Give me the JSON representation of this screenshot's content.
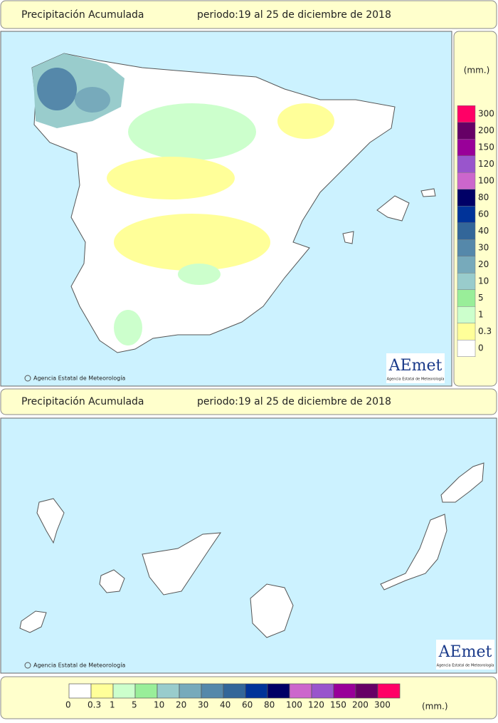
{
  "headers": [
    {
      "title": "Precipitación Acumulada",
      "period": "periodo:19 al 25 de diciembre de 2018"
    },
    {
      "title": "Precipitación Acumulada",
      "period": "periodo:19 al 25 de diciembre de 2018"
    }
  ],
  "maps": [
    {
      "credit": "Agencia Estatal de Meteorología",
      "logo": "AEmet",
      "logo_subtitle": "Agencia Estatal de Meteorología"
    },
    {
      "credit": "Agencia Estatal de Meteorología",
      "logo": "AEmet",
      "logo_subtitle": "Agencia Estatal de Meteorología"
    }
  ],
  "legend": {
    "unit": "(mm.)",
    "classes": [
      {
        "label": "0",
        "color": "#ffffff"
      },
      {
        "label": "0.3",
        "color": "#ffff99"
      },
      {
        "label": "1",
        "color": "#ccffcc"
      },
      {
        "label": "5",
        "color": "#99ee99"
      },
      {
        "label": "10",
        "color": "#99cccc"
      },
      {
        "label": "20",
        "color": "#77aabb"
      },
      {
        "label": "30",
        "color": "#5588aa"
      },
      {
        "label": "40",
        "color": "#336699"
      },
      {
        "label": "60",
        "color": "#003399"
      },
      {
        "label": "80",
        "color": "#000066"
      },
      {
        "label": "100",
        "color": "#cc66cc"
      },
      {
        "label": "120",
        "color": "#9955cc"
      },
      {
        "label": "150",
        "color": "#990099"
      },
      {
        "label": "200",
        "color": "#660066"
      },
      {
        "label": "300",
        "color": "#ff0066"
      }
    ]
  }
}
